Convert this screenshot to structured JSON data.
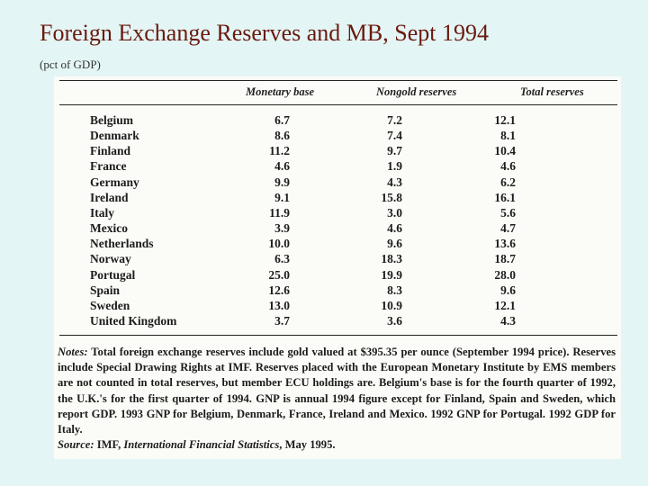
{
  "header": {
    "title": "Foreign Exchange Reserves and MB, Sept 1994",
    "subtitle": "(pct of GDP)"
  },
  "table": {
    "columns": [
      "Monetary base",
      "Nongold reserves",
      "Total reserves"
    ],
    "rows": [
      [
        "Belgium",
        "6.7",
        "7.2",
        "12.1"
      ],
      [
        "Denmark",
        "8.6",
        "7.4",
        "8.1"
      ],
      [
        "Finland",
        "11.2",
        "9.7",
        "10.4"
      ],
      [
        "France",
        "4.6",
        "1.9",
        "4.6"
      ],
      [
        "Germany",
        "9.9",
        "4.3",
        "6.2"
      ],
      [
        "Ireland",
        "9.1",
        "15.8",
        "16.1"
      ],
      [
        "Italy",
        "11.9",
        "3.0",
        "5.6"
      ],
      [
        "Mexico",
        "3.9",
        "4.6",
        "4.7"
      ],
      [
        "Netherlands",
        "10.0",
        "9.6",
        "13.6"
      ],
      [
        "Norway",
        "6.3",
        "18.3",
        "18.7"
      ],
      [
        "Portugal",
        "25.0",
        "19.9",
        "28.0"
      ],
      [
        "Spain",
        "12.6",
        "8.3",
        "9.6"
      ],
      [
        "Sweden",
        "13.0",
        "10.9",
        "12.1"
      ],
      [
        "United Kingdom",
        "3.7",
        "3.6",
        "4.3"
      ]
    ]
  },
  "notes": {
    "label": "Notes:",
    "text": "Total foreign exchange reserves include gold valued at $395.35 per ounce (September 1994 price). Reserves include Special Drawing Rights at IMF. Reserves placed with the European Monetary Institute by EMS members are not counted in total reserves, but member ECU holdings are. Belgium's base is for the fourth quarter of 1992, the U.K.'s for the first quarter of 1994. GNP is annual 1994 figure except for Finland, Spain and Sweden, which report GDP. 1993 GNP for Belgium, Denmark, France, Ireland and Mexico. 1992 GNP for Portugal. 1992 GDP for Italy."
  },
  "source": {
    "label": "Source:",
    "prefix": "IMF,",
    "publication": "International Financial Statistics",
    "suffix": ", May 1995."
  }
}
